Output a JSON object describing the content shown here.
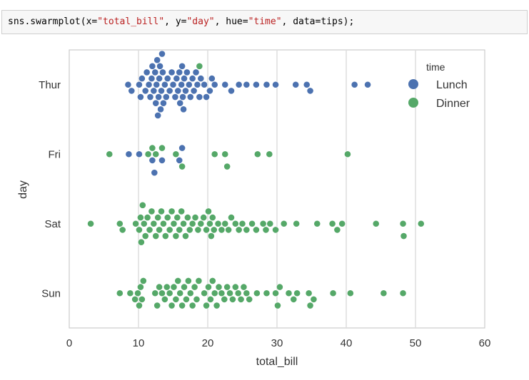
{
  "code": {
    "func": "sns.swarmplot(",
    "x_kw": "x=",
    "x_val": "\"total_bill\"",
    "sep1": ", ",
    "y_kw": "y=",
    "y_val": "\"day\"",
    "sep2": ", ",
    "hue_kw": "hue=",
    "hue_val": "\"time\"",
    "sep3": ", ",
    "data_kw": "data=",
    "data_val": "tips",
    "end": ");"
  },
  "chart_data": {
    "type": "scatter",
    "subtype": "swarm",
    "xlabel": "total_bill",
    "ylabel": "day",
    "xlim": [
      0,
      60
    ],
    "xticks": [
      "0",
      "10",
      "20",
      "30",
      "40",
      "50",
      "60"
    ],
    "categories": [
      "Thur",
      "Fri",
      "Sat",
      "Sun"
    ],
    "grid": "vertical",
    "legend": {
      "title": "time",
      "placement": "top-right"
    },
    "series": [
      {
        "name": "Lunch",
        "color": "#4c72b0",
        "values": {
          "Thur": [
            8.5,
            9.0,
            10.1,
            10.3,
            10.5,
            11.0,
            11.2,
            11.5,
            11.7,
            11.9,
            12.0,
            12.2,
            12.4,
            12.5,
            12.6,
            12.7,
            12.8,
            12.9,
            13.0,
            13.1,
            13.2,
            13.3,
            13.4,
            13.5,
            13.6,
            13.8,
            14.0,
            14.2,
            14.5,
            14.8,
            15.0,
            15.3,
            15.5,
            15.7,
            15.9,
            16.0,
            16.2,
            16.3,
            16.4,
            16.5,
            16.6,
            16.8,
            17.0,
            17.3,
            17.5,
            17.8,
            18.0,
            18.3,
            18.5,
            18.8,
            19.0,
            19.5,
            19.8,
            20.3,
            20.6,
            21.0,
            22.5,
            23.4,
            24.5,
            25.6,
            27.0,
            28.5,
            29.8,
            32.7,
            34.3,
            34.8,
            41.2,
            43.1
          ],
          "Fri": [
            8.6,
            10.1,
            12.0,
            12.3,
            13.4,
            15.9,
            16.3
          ]
        }
      },
      {
        "name": "Dinner",
        "color": "#55a868",
        "values": {
          "Thur": [
            18.8
          ],
          "Fri": [
            5.8,
            11.4,
            12.0,
            12.5,
            13.4,
            15.4,
            16.3,
            21.0,
            22.5,
            22.8,
            27.2,
            28.9,
            40.2
          ],
          "Sat": [
            3.1,
            7.3,
            7.7,
            9.6,
            10.1,
            10.3,
            10.4,
            10.6,
            10.8,
            11.0,
            11.3,
            11.6,
            11.9,
            12.2,
            12.5,
            12.8,
            13.0,
            13.3,
            13.6,
            13.9,
            14.2,
            14.5,
            14.8,
            15.1,
            15.4,
            15.6,
            15.9,
            16.2,
            16.5,
            16.8,
            17.1,
            17.4,
            17.8,
            18.2,
            18.6,
            19.0,
            19.4,
            19.8,
            20.1,
            20.3,
            20.5,
            20.7,
            20.9,
            21.5,
            22.0,
            22.5,
            23.0,
            23.4,
            24.0,
            24.5,
            25.0,
            25.6,
            26.4,
            27.0,
            28.0,
            28.4,
            29.0,
            29.8,
            31.0,
            32.8,
            35.8,
            38.0,
            38.7,
            39.4,
            44.3,
            48.2,
            48.3,
            50.8
          ],
          "Sun": [
            7.3,
            8.8,
            9.5,
            9.9,
            10.1,
            10.3,
            10.5,
            10.7,
            12.4,
            12.7,
            13.0,
            13.4,
            13.8,
            14.1,
            14.5,
            14.8,
            15.1,
            15.4,
            15.7,
            16.0,
            16.3,
            16.6,
            16.9,
            17.2,
            17.5,
            17.8,
            18.1,
            18.4,
            18.7,
            19.5,
            19.8,
            20.1,
            20.4,
            20.7,
            21.0,
            21.3,
            21.6,
            22.0,
            22.4,
            22.8,
            23.2,
            23.6,
            24.0,
            24.4,
            24.8,
            25.2,
            25.6,
            26.0,
            27.1,
            28.5,
            29.8,
            30.1,
            30.4,
            31.7,
            32.4,
            32.9,
            34.6,
            34.8,
            35.3,
            38.1,
            40.6,
            45.4,
            48.2
          ]
        }
      }
    ]
  }
}
